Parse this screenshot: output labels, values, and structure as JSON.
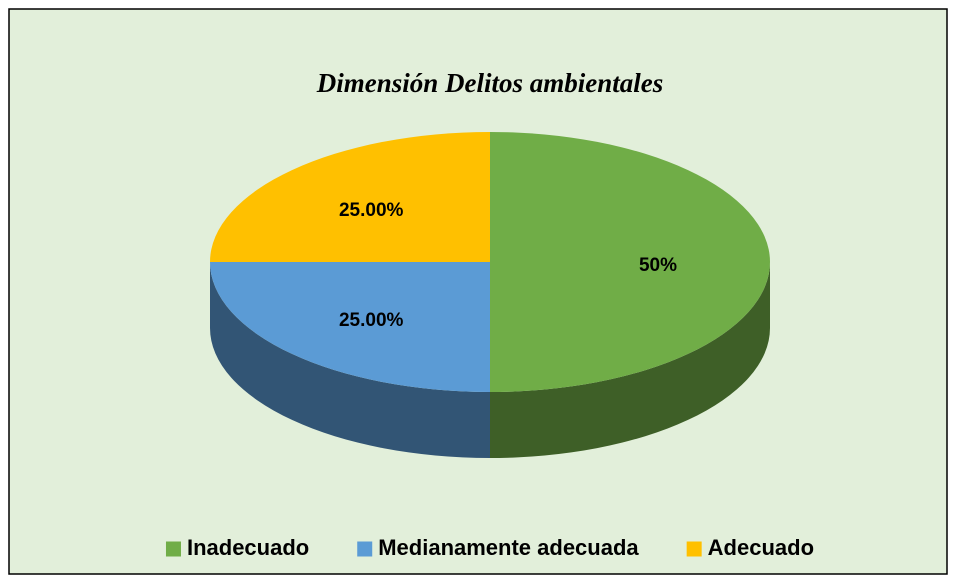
{
  "chart_data": {
    "type": "pie3d",
    "title": "Dimensión Delitos ambientales",
    "categories": [
      "Inadecuado",
      "Medianamente adecuada",
      "Adecuado"
    ],
    "values": [
      50,
      25,
      25
    ],
    "value_labels": [
      "50%",
      "25.00%",
      "25.00%"
    ],
    "colors": [
      "#70ad47",
      "#5b9bd5",
      "#ffc000"
    ],
    "legend": "bottom"
  }
}
